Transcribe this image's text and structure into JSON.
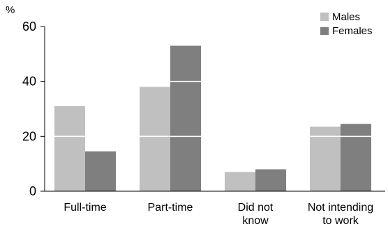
{
  "chart_data": {
    "type": "bar",
    "unit_label": "%",
    "categories": [
      [
        "Full-time"
      ],
      [
        "Part-time"
      ],
      [
        "Did not",
        "know"
      ],
      [
        "Not intending",
        "to work"
      ]
    ],
    "series": [
      {
        "name": "Males",
        "color": "#c0c0c0",
        "values": [
          31,
          38,
          7,
          23.5
        ]
      },
      {
        "name": "Females",
        "color": "#7f7f7f",
        "values": [
          14.5,
          53,
          8,
          24.5
        ]
      }
    ],
    "ylim": [
      0,
      60
    ],
    "yticks": [
      0,
      20,
      40,
      60
    ],
    "gridlines_over_bars": true,
    "legend_position": "top-right"
  }
}
